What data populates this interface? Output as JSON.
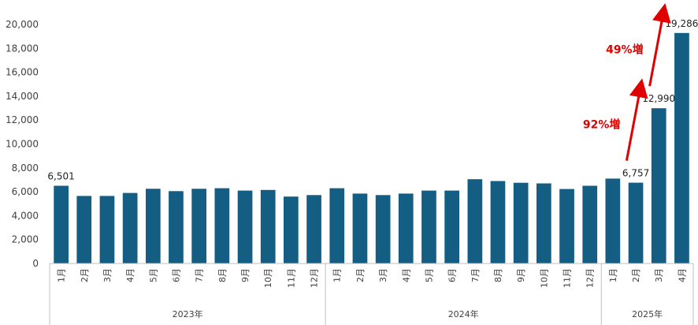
{
  "chart_data": {
    "type": "bar",
    "bar_color": "#135e82",
    "arrow_color": "#e00000",
    "ylim": [
      0,
      20000
    ],
    "y_ticks": [
      "0",
      "2,000",
      "4,000",
      "6,000",
      "8,000",
      "10,000",
      "12,000",
      "14,000",
      "16,000",
      "18,000",
      "20,000"
    ],
    "grid": false,
    "legend": "none",
    "year_groups": [
      {
        "label": "2023年",
        "months": [
          "1月",
          "2月",
          "3月",
          "4月",
          "5月",
          "6月",
          "7月",
          "8月",
          "9月",
          "10月",
          "11月",
          "12月"
        ],
        "values": [
          6501,
          5650,
          5650,
          5900,
          6250,
          6050,
          6250,
          6300,
          6100,
          6150,
          5600,
          5720
        ]
      },
      {
        "label": "2024年",
        "months": [
          "1月",
          "2月",
          "3月",
          "4月",
          "5月",
          "6月",
          "7月",
          "8月",
          "9月",
          "10月",
          "11月",
          "12月"
        ],
        "values": [
          6300,
          5850,
          5720,
          5850,
          6100,
          6100,
          7050,
          6900,
          6750,
          6700,
          6230,
          6500
        ]
      },
      {
        "label": "2025年",
        "months": [
          "1月",
          "2月",
          "3月",
          "4月"
        ],
        "values": [
          7100,
          6757,
          12990,
          19286
        ]
      }
    ],
    "data_labels": [
      {
        "group": 0,
        "index": 0,
        "text": "6,501"
      },
      {
        "group": 2,
        "index": 1,
        "text": "6,757"
      },
      {
        "group": 2,
        "index": 2,
        "text": "12,990"
      },
      {
        "group": 2,
        "index": 3,
        "text": "19,286"
      }
    ],
    "annotations": [
      {
        "text": "92%増",
        "from_group": 2,
        "from_index": 1,
        "to_index": 2
      },
      {
        "text": "49%増",
        "from_group": 2,
        "from_index": 2,
        "to_index": 3
      }
    ]
  }
}
